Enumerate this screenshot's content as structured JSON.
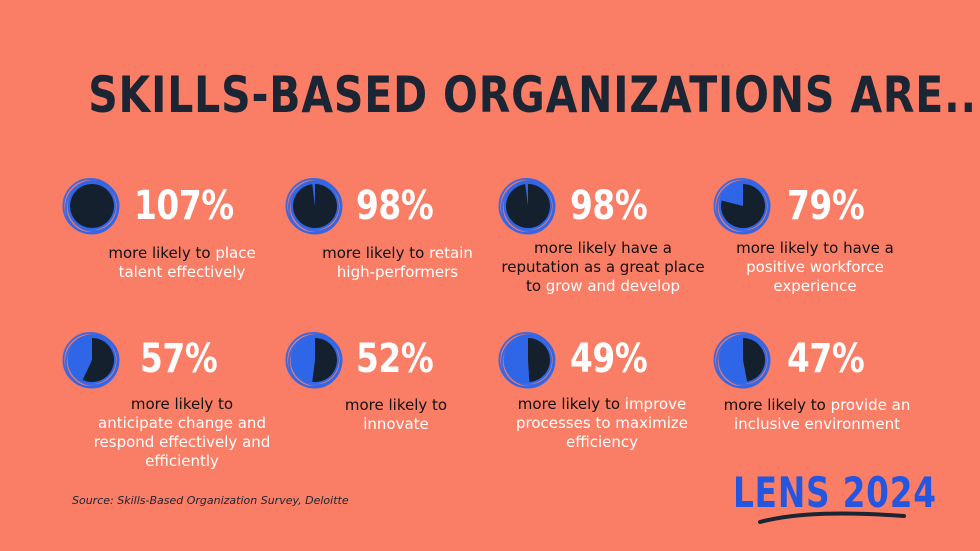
{
  "title": "SKILLS-BASED ORGANIZATIONS ARE...",
  "colors": {
    "background": "#FA7D66",
    "pie_blue": "#2F66E8",
    "pie_dark": "#15202E",
    "highlight_text": "#FFFFFF"
  },
  "stats": [
    {
      "percent": "107%",
      "fraction": 1.0,
      "plain": "more likely to ",
      "highlight": "place talent effectively",
      "rest": ""
    },
    {
      "percent": "98%",
      "fraction": 0.98,
      "plain": "more likely to ",
      "highlight": "retain high-performers",
      "rest": ""
    },
    {
      "percent": "98%",
      "fraction": 0.98,
      "plain": "more likely have a reputation as a great place to ",
      "highlight": "grow and develop",
      "rest": ""
    },
    {
      "percent": "79%",
      "fraction": 0.79,
      "plain": "more likely to have a ",
      "highlight": "positive workforce experience",
      "rest": ""
    },
    {
      "percent": "57%",
      "fraction": 0.57,
      "plain": "more likely to ",
      "highlight": "anticipate change and respond effectively and efficiently",
      "rest": ""
    },
    {
      "percent": "52%",
      "fraction": 0.52,
      "plain": "more likely to ",
      "highlight": "innovate",
      "rest": ""
    },
    {
      "percent": "49%",
      "fraction": 0.49,
      "plain": "more likely to ",
      "highlight": "improve processes to maximize efficiency",
      "rest": ""
    },
    {
      "percent": "47%",
      "fraction": 0.47,
      "plain": "more likely to ",
      "highlight": "provide an inclusive environment",
      "rest": ""
    }
  ],
  "source": "Source: Skills-Based Organization Survey, Deloitte",
  "brand": "LENS 2024"
}
